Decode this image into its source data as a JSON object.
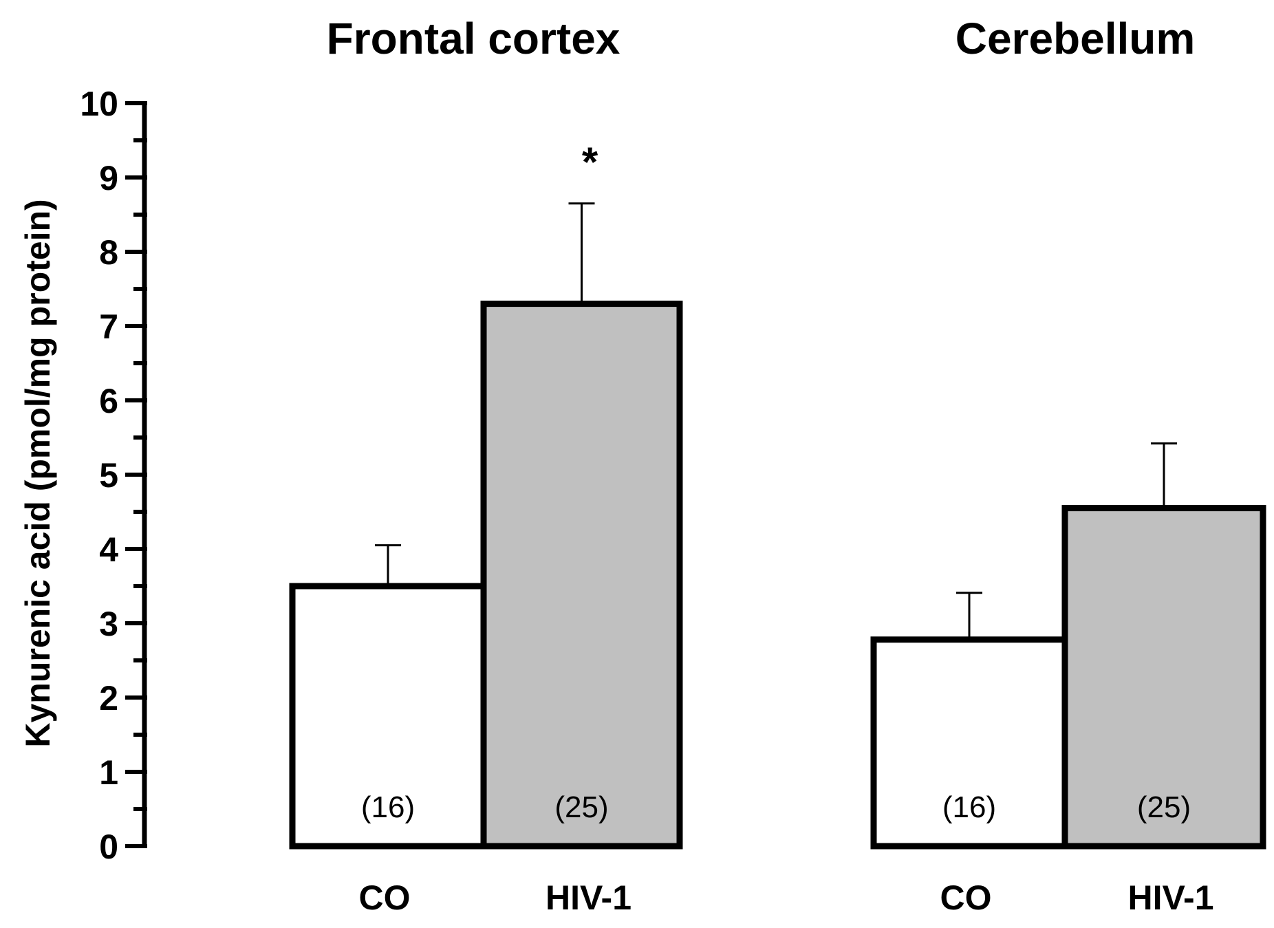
{
  "chart_data": {
    "type": "bar",
    "ylabel": "Kynurenic acid (pmol/mg protein)",
    "ylim": [
      0,
      10
    ],
    "yticks": [
      "0",
      "1",
      "2",
      "3",
      "4",
      "5",
      "6",
      "7",
      "8",
      "9",
      "10"
    ],
    "colors": {
      "CO": "#ffffff",
      "HIV-1": "#c0c0c0",
      "stroke": "#000000"
    },
    "panels": [
      {
        "title": "Frontal cortex",
        "categories": [
          "CO",
          "HIV-1"
        ],
        "values": [
          3.5,
          7.3
        ],
        "errors": [
          0.55,
          1.35
        ],
        "n_labels": [
          "(16)",
          "(25)"
        ],
        "significance": [
          "",
          "*"
        ]
      },
      {
        "title": "Cerebellum",
        "categories": [
          "CO",
          "HIV-1"
        ],
        "values": [
          2.78,
          4.55
        ],
        "errors": [
          0.63,
          0.87
        ],
        "n_labels": [
          "(16)",
          "(25)"
        ],
        "significance": [
          "",
          ""
        ]
      }
    ]
  }
}
